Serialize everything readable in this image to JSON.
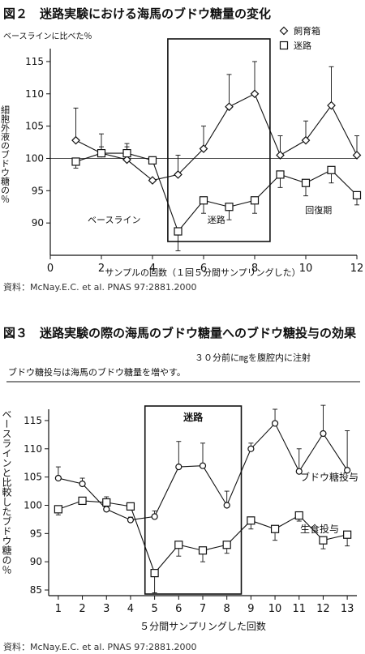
{
  "figure1": {
    "title": "図２　迷路実験における海馬のブドウ糖量の変化",
    "source": "資料：McNay.E.C. et al. PNAS 97:2881.2000",
    "chart_data": {
      "type": "line",
      "ylabel_top": "ベースラインに比べた％",
      "ylabel_side": "細胞外液のブドウ糖の％",
      "xlabel": "サンプルの回数（１回５分間サンプリングした）",
      "xlim": [
        0,
        12
      ],
      "ylim": [
        85,
        117
      ],
      "xticks": [
        0,
        2,
        4,
        6,
        8,
        10,
        12
      ],
      "yticks": [
        90,
        95,
        100,
        105,
        110,
        115
      ],
      "baseline": 100,
      "shaded_box": {
        "x_start": 4.6,
        "x_end": 8.6
      },
      "annotations": [
        {
          "text": "ベースライン",
          "x": 2.5,
          "y": 90
        },
        {
          "text": "迷路",
          "x": 6.5,
          "y": 90
        },
        {
          "text": "回復期",
          "x": 10.5,
          "y": 91.5
        }
      ],
      "legend": {
        "placement": "top-right"
      },
      "series": [
        {
          "name": "飼育箱",
          "marker": "diamond",
          "x": [
            1,
            2,
            3,
            4,
            5,
            6,
            7,
            8,
            9,
            10,
            11,
            12
          ],
          "y": [
            102.8,
            100.8,
            99.8,
            96.6,
            97.5,
            101.5,
            108,
            110,
            100.5,
            102.8,
            108.2,
            100.5
          ],
          "err": [
            5,
            3,
            2.5,
            0,
            3,
            3.5,
            5,
            5,
            3,
            3,
            6,
            3
          ]
        },
        {
          "name": "迷路",
          "marker": "square",
          "x": [
            1,
            2,
            3,
            4,
            5,
            6,
            7,
            8,
            9,
            10,
            11,
            12
          ],
          "y": [
            99.5,
            100.8,
            100.8,
            99.7,
            88.7,
            93.5,
            92.5,
            93.5,
            97.5,
            96.2,
            98.2,
            94.3
          ],
          "err": [
            1,
            1,
            1,
            0.5,
            3,
            2,
            2,
            2,
            2,
            2,
            2,
            1.5
          ]
        }
      ]
    }
  },
  "figure2": {
    "title": "図３　迷路実験の際の海馬のブドウ糖量へのブドウ糖投与の効果",
    "source": "資料：McNay.E.C. et al. PNAS 97:2881.2000",
    "chart_data": {
      "type": "line",
      "note_top": "３０分前に㎎を腹腔内に注射",
      "subtitle": "ブドウ糖投与は海馬のブドウ糖量を増やす。",
      "ylabel": "ベースラインと比較したブドウ糖の％",
      "xlabel": "５分間サンプリングした回数",
      "xlim": [
        0.6,
        13.4
      ],
      "ylim": [
        84,
        117
      ],
      "xticks": [
        1,
        2,
        3,
        4,
        5,
        6,
        7,
        8,
        9,
        10,
        11,
        12,
        13
      ],
      "yticks": [
        85,
        90,
        95,
        100,
        105,
        110,
        115
      ],
      "shaded_box": {
        "label": "迷路",
        "x_start": 4.6,
        "x_end": 8.6
      },
      "series": [
        {
          "name": "ブドウ糖投与",
          "marker": "circle",
          "x": [
            1,
            2,
            3,
            4,
            5,
            6,
            7,
            8,
            9,
            10,
            11,
            12,
            13
          ],
          "y": [
            104.8,
            103.8,
            99.3,
            97.4,
            98,
            106.8,
            107,
            100,
            110,
            114.5,
            106,
            112.7,
            106.2
          ],
          "err": [
            2,
            1,
            1.5,
            0.5,
            1,
            4.5,
            4,
            2.5,
            1,
            2.5,
            4,
            5,
            7
          ]
        },
        {
          "name": "生食投与",
          "marker": "square",
          "x": [
            1,
            2,
            3,
            4,
            5,
            6,
            7,
            8,
            9,
            10,
            11,
            12,
            13
          ],
          "y": [
            99.3,
            100.8,
            100.5,
            99.8,
            88,
            93,
            92,
            93,
            97.3,
            95.8,
            98.2,
            93.8,
            94.8
          ],
          "err": [
            1,
            0.5,
            1,
            0.5,
            3.5,
            2,
            2,
            1.5,
            1.5,
            2,
            1,
            1.5,
            2
          ]
        }
      ]
    }
  }
}
